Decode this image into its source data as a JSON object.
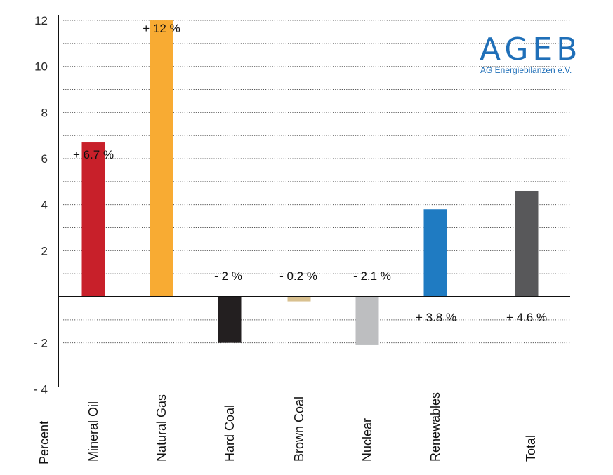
{
  "logo": {
    "main": "AGEB",
    "sub": "AG Energiebilanzen e.V.",
    "color": "#1f6fb8"
  },
  "chart_data": {
    "type": "bar",
    "title": "",
    "xlabel": "",
    "ylabel": "Percent",
    "ylim": [
      -5,
      13
    ],
    "yticks": [
      -4,
      -2,
      2,
      4,
      6,
      8,
      10,
      12
    ],
    "ytick_labels": [
      "- 4",
      "- 2",
      "2",
      "4",
      "6",
      "8",
      "10",
      "12"
    ],
    "grid": true,
    "categories": [
      "Mineral Oil",
      "Natural Gas",
      "Hard Coal",
      "Brown Coal",
      "Nuclear",
      "Renewables",
      "Total"
    ],
    "values": [
      6.7,
      12,
      -2,
      -0.2,
      -2.1,
      3.8,
      4.6
    ],
    "data_labels": [
      "+ 6.7 %",
      "+ 12 %",
      "- 2 %",
      "- 0.2 %",
      "- 2.1 %",
      "+ 3.8 %",
      "+ 4.6 %"
    ],
    "colors": [
      "#c8202a",
      "#f8ab33",
      "#231f20",
      "#d9c190",
      "#bdbec0",
      "#1f7bc2",
      "#58585a"
    ]
  }
}
